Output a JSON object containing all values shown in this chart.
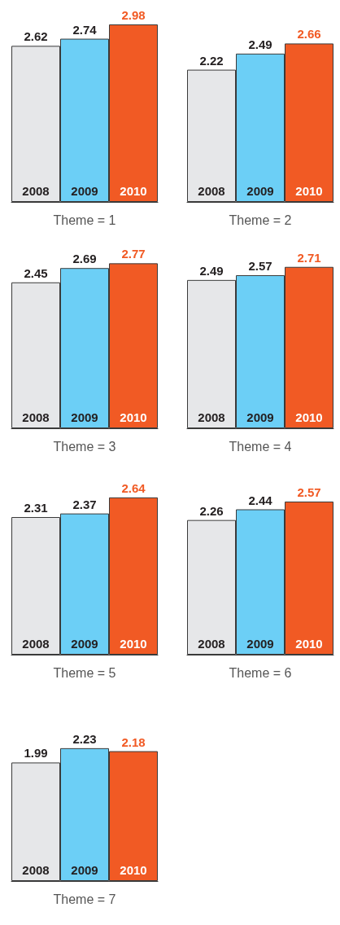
{
  "chart_data": [
    {
      "type": "bar",
      "xlabel": "Theme = 1",
      "categories": [
        "2008",
        "2009",
        "2010"
      ],
      "values": [
        2.62,
        2.74,
        2.98
      ],
      "colors": [
        "#e6e7e9",
        "#6ccff6",
        "#f15a24"
      ],
      "data_labels": true,
      "grid": false
    },
    {
      "type": "bar",
      "xlabel": "Theme = 2",
      "categories": [
        "2008",
        "2009",
        "2010"
      ],
      "values": [
        2.22,
        2.49,
        2.66
      ],
      "colors": [
        "#e6e7e9",
        "#6ccff6",
        "#f15a24"
      ],
      "data_labels": true,
      "grid": false
    },
    {
      "type": "bar",
      "xlabel": "Theme = 3",
      "categories": [
        "2008",
        "2009",
        "2010"
      ],
      "values": [
        2.45,
        2.69,
        2.77
      ],
      "colors": [
        "#e6e7e9",
        "#6ccff6",
        "#f15a24"
      ],
      "data_labels": true,
      "grid": false
    },
    {
      "type": "bar",
      "xlabel": "Theme = 4",
      "categories": [
        "2008",
        "2009",
        "2010"
      ],
      "values": [
        2.49,
        2.57,
        2.71
      ],
      "colors": [
        "#e6e7e9",
        "#6ccff6",
        "#f15a24"
      ],
      "data_labels": true,
      "grid": false
    },
    {
      "type": "bar",
      "xlabel": "Theme = 5",
      "categories": [
        "2008",
        "2009",
        "2010"
      ],
      "values": [
        2.31,
        2.37,
        2.64
      ],
      "colors": [
        "#e6e7e9",
        "#6ccff6",
        "#f15a24"
      ],
      "data_labels": true,
      "grid": false
    },
    {
      "type": "bar",
      "xlabel": "Theme = 6",
      "categories": [
        "2008",
        "2009",
        "2010"
      ],
      "values": [
        2.26,
        2.44,
        2.57
      ],
      "colors": [
        "#e6e7e9",
        "#6ccff6",
        "#f15a24"
      ],
      "data_labels": true,
      "grid": false
    },
    {
      "type": "bar",
      "xlabel": "Theme = 7",
      "categories": [
        "2008",
        "2009",
        "2010"
      ],
      "values": [
        1.99,
        2.23,
        2.18
      ],
      "colors": [
        "#e6e7e9",
        "#6ccff6",
        "#f15a24"
      ],
      "data_labels": true,
      "grid": false
    }
  ]
}
